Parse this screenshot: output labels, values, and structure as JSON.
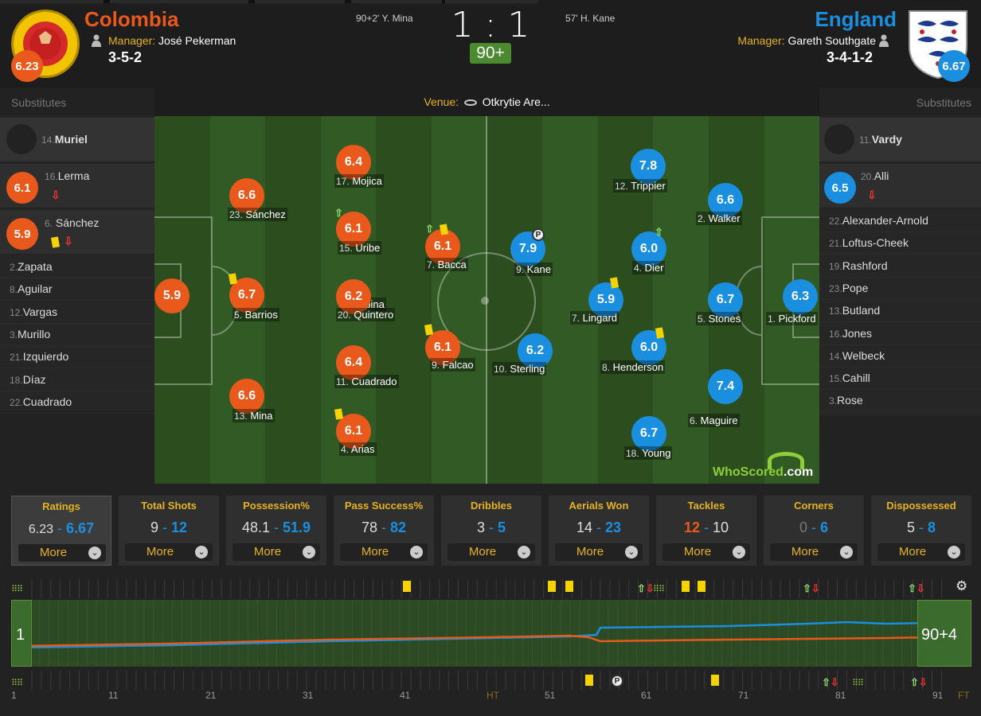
{
  "home": {
    "name": "Colombia",
    "manager_label": "Manager:",
    "manager": "José Pekerman",
    "formation": "3-5-2",
    "rating": "6.23",
    "color": "#e8591b",
    "goal": "90+2' Y. Mina"
  },
  "away": {
    "name": "England",
    "manager_label": "Manager:",
    "manager": "Gareth Southgate",
    "formation": "3-4-1-2",
    "rating": "6.67",
    "color": "#1b8fdf",
    "goal": "57' H. Kane"
  },
  "score": "1 : 1",
  "minute": "90+",
  "venue_label": "Venue:",
  "venue": "Otkrytie Are...",
  "substitutes_label": "Substitutes",
  "home_subs_used": [
    {
      "num": "14.",
      "name": "Muriel",
      "rating": ""
    },
    {
      "num": "16.",
      "name": "Lerma",
      "rating": "6.1"
    },
    {
      "num": "6.",
      "name": "Sánchez",
      "rating": "5.9"
    }
  ],
  "home_bench": [
    {
      "num": "2.",
      "name": "Zapata"
    },
    {
      "num": "8.",
      "name": "Aguilar"
    },
    {
      "num": "12.",
      "name": "Vargas"
    },
    {
      "num": "3.",
      "name": "Murillo"
    },
    {
      "num": "21.",
      "name": "Izquierdo"
    },
    {
      "num": "18.",
      "name": "Díaz"
    },
    {
      "num": "22.",
      "name": "Cuadrado"
    }
  ],
  "away_subs_used": [
    {
      "num": "11.",
      "name": "Vardy",
      "rating": ""
    },
    {
      "num": "20.",
      "name": "Alli",
      "rating": "6.5"
    }
  ],
  "away_bench": [
    {
      "num": "22.",
      "name": "Alexander-Arnold"
    },
    {
      "num": "21.",
      "name": "Loftus-Cheek"
    },
    {
      "num": "19.",
      "name": "Rashford"
    },
    {
      "num": "23.",
      "name": "Pope"
    },
    {
      "num": "13.",
      "name": "Butland"
    },
    {
      "num": "16.",
      "name": "Jones"
    },
    {
      "num": "14.",
      "name": "Welbeck"
    },
    {
      "num": "15.",
      "name": "Cahill"
    },
    {
      "num": "3.",
      "name": "Rose"
    }
  ],
  "home_players": [
    {
      "num": "1.",
      "name": "Ospina",
      "rating": "5.9"
    },
    {
      "num": "23.",
      "name": "Sánchez",
      "rating": "6.6"
    },
    {
      "num": "5.",
      "name": "Barrios",
      "rating": "6.7"
    },
    {
      "num": "13.",
      "name": "Mina",
      "rating": "6.6"
    },
    {
      "num": "17.",
      "name": "Mojica",
      "rating": "6.4"
    },
    {
      "num": "15.",
      "name": "Uribe",
      "rating": "6.1"
    },
    {
      "num": "20.",
      "name": "Quintero",
      "rating": "6.2"
    },
    {
      "num": "11.",
      "name": "Cuadrado",
      "rating": "6.4"
    },
    {
      "num": "4.",
      "name": "Arias",
      "rating": "6.1"
    },
    {
      "num": "7.",
      "name": "Bacca",
      "rating": "6.1"
    },
    {
      "num": "9.",
      "name": "Falcao",
      "rating": "6.1"
    }
  ],
  "away_players": [
    {
      "num": "9.",
      "name": "Kane",
      "rating": "7.9"
    },
    {
      "num": "10.",
      "name": "Sterling",
      "rating": "6.2"
    },
    {
      "num": "7.",
      "name": "Lingard",
      "rating": "5.9"
    },
    {
      "num": "12.",
      "name": "Trippier",
      "rating": "7.8"
    },
    {
      "num": "4.",
      "name": "Dier",
      "rating": "6.0"
    },
    {
      "num": "8.",
      "name": "Henderson",
      "rating": "6.0"
    },
    {
      "num": "18.",
      "name": "Young",
      "rating": "6.7"
    },
    {
      "num": "2.",
      "name": "Walker",
      "rating": "6.6"
    },
    {
      "num": "5.",
      "name": "Stones",
      "rating": "6.7"
    },
    {
      "num": "6.",
      "name": "Maguire",
      "rating": "7.4"
    },
    {
      "num": "1.",
      "name": "Pickford",
      "rating": "6.3"
    }
  ],
  "stats": [
    {
      "title": "Ratings",
      "home": "6.23",
      "away": "6.67",
      "more": "More"
    },
    {
      "title": "Total Shots",
      "home": "9",
      "away": "12",
      "more": "More"
    },
    {
      "title": "Possession%",
      "home": "48.1",
      "away": "51.9",
      "more": "More"
    },
    {
      "title": "Pass Success%",
      "home": "78",
      "away": "82",
      "more": "More"
    },
    {
      "title": "Dribbles",
      "home": "3",
      "away": "5",
      "more": "More"
    },
    {
      "title": "Aerials Won",
      "home": "14",
      "away": "23",
      "more": "More"
    },
    {
      "title": "Tackles",
      "home": "12",
      "away": "10",
      "more": "More"
    },
    {
      "title": "Corners",
      "home": "0",
      "away": "6",
      "more": "More"
    },
    {
      "title": "Dispossessed",
      "home": "5",
      "away": "8",
      "more": "More"
    }
  ],
  "timeline": {
    "start_label": "1",
    "end_label": "90+4",
    "ticks": [
      "1",
      "11",
      "21",
      "31",
      "41",
      "HT",
      "51",
      "61",
      "71",
      "81",
      "91",
      "FT"
    ]
  },
  "watermark": {
    "part1": "WhoScored",
    "part2": ".com"
  },
  "icons": {
    "manager": "manager-icon",
    "settings": "gear-icon",
    "venue": "stadium-icon"
  }
}
